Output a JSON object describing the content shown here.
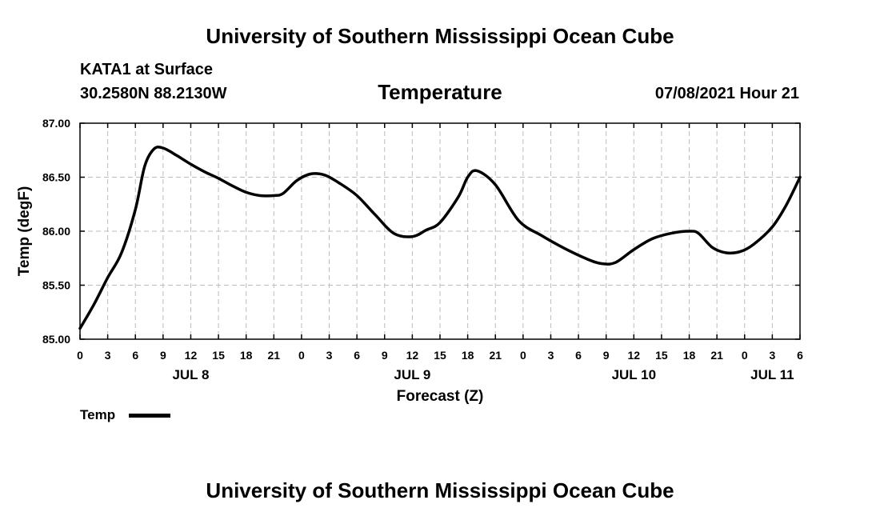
{
  "header": {
    "title": "University of Southern Mississippi Ocean Cube",
    "station": "KATA1 at Surface",
    "coords": "30.2580N  88.2130W",
    "datetime": "07/08/2021 Hour 21",
    "footer_title": "University of Southern Mississippi Ocean Cube"
  },
  "chart_data": {
    "type": "line",
    "title": "Temperature",
    "xlabel": "Forecast (Z)",
    "ylabel": "Temp (degF)",
    "ylim": [
      85.0,
      87.0
    ],
    "yticks": [
      85.0,
      85.5,
      86.0,
      86.5,
      87.0
    ],
    "ytick_labels": [
      "85.00",
      "85.50",
      "86.00",
      "86.50",
      "87.00"
    ],
    "xlim": [
      0,
      78
    ],
    "x_unit": "forecast hours from JUL 8 00Z",
    "xticks": [
      0,
      3,
      6,
      9,
      12,
      15,
      18,
      21,
      24,
      27,
      30,
      33,
      36,
      39,
      42,
      45,
      48,
      51,
      54,
      57,
      60,
      63,
      66,
      69,
      72,
      75,
      78
    ],
    "xtick_labels": [
      "0",
      "3",
      "6",
      "9",
      "12",
      "15",
      "18",
      "21",
      "0",
      "3",
      "6",
      "9",
      "12",
      "15",
      "18",
      "21",
      "0",
      "3",
      "6",
      "9",
      "12",
      "15",
      "18",
      "21",
      "0",
      "3",
      "6"
    ],
    "date_labels": [
      {
        "x": 12,
        "label": "JUL 8"
      },
      {
        "x": 36,
        "label": "JUL 9"
      },
      {
        "x": 60,
        "label": "JUL 10"
      },
      {
        "x": 75,
        "label": "JUL 11"
      }
    ],
    "grid": true,
    "series": [
      {
        "name": "Temp",
        "color": "#000000",
        "x": [
          0,
          1.5,
          3,
          4.5,
          6,
          7,
          8,
          9,
          10.5,
          12,
          13.5,
          15,
          16.5,
          18,
          19.5,
          21,
          22,
          23.5,
          25,
          26.5,
          28,
          30,
          32,
          34,
          36,
          37.5,
          39,
          41,
          42,
          43,
          45,
          47.5,
          50,
          52.5,
          55,
          56.5,
          58,
          60,
          62,
          64,
          66,
          67,
          68.5,
          70,
          71.5,
          73,
          75,
          76.5,
          78
        ],
        "y": [
          85.1,
          85.32,
          85.57,
          85.8,
          86.2,
          86.6,
          86.76,
          86.77,
          86.7,
          86.62,
          86.55,
          86.49,
          86.42,
          86.36,
          86.33,
          86.33,
          86.35,
          86.47,
          86.53,
          86.52,
          86.45,
          86.33,
          86.15,
          85.98,
          85.95,
          86.01,
          86.08,
          86.32,
          86.5,
          86.56,
          86.43,
          86.1,
          85.96,
          85.84,
          85.74,
          85.7,
          85.71,
          85.83,
          85.93,
          85.98,
          86.0,
          85.98,
          85.85,
          85.8,
          85.81,
          85.88,
          86.04,
          86.24,
          86.5
        ]
      }
    ],
    "legend": [
      {
        "label": "Temp",
        "position": "bottom-left"
      }
    ]
  }
}
